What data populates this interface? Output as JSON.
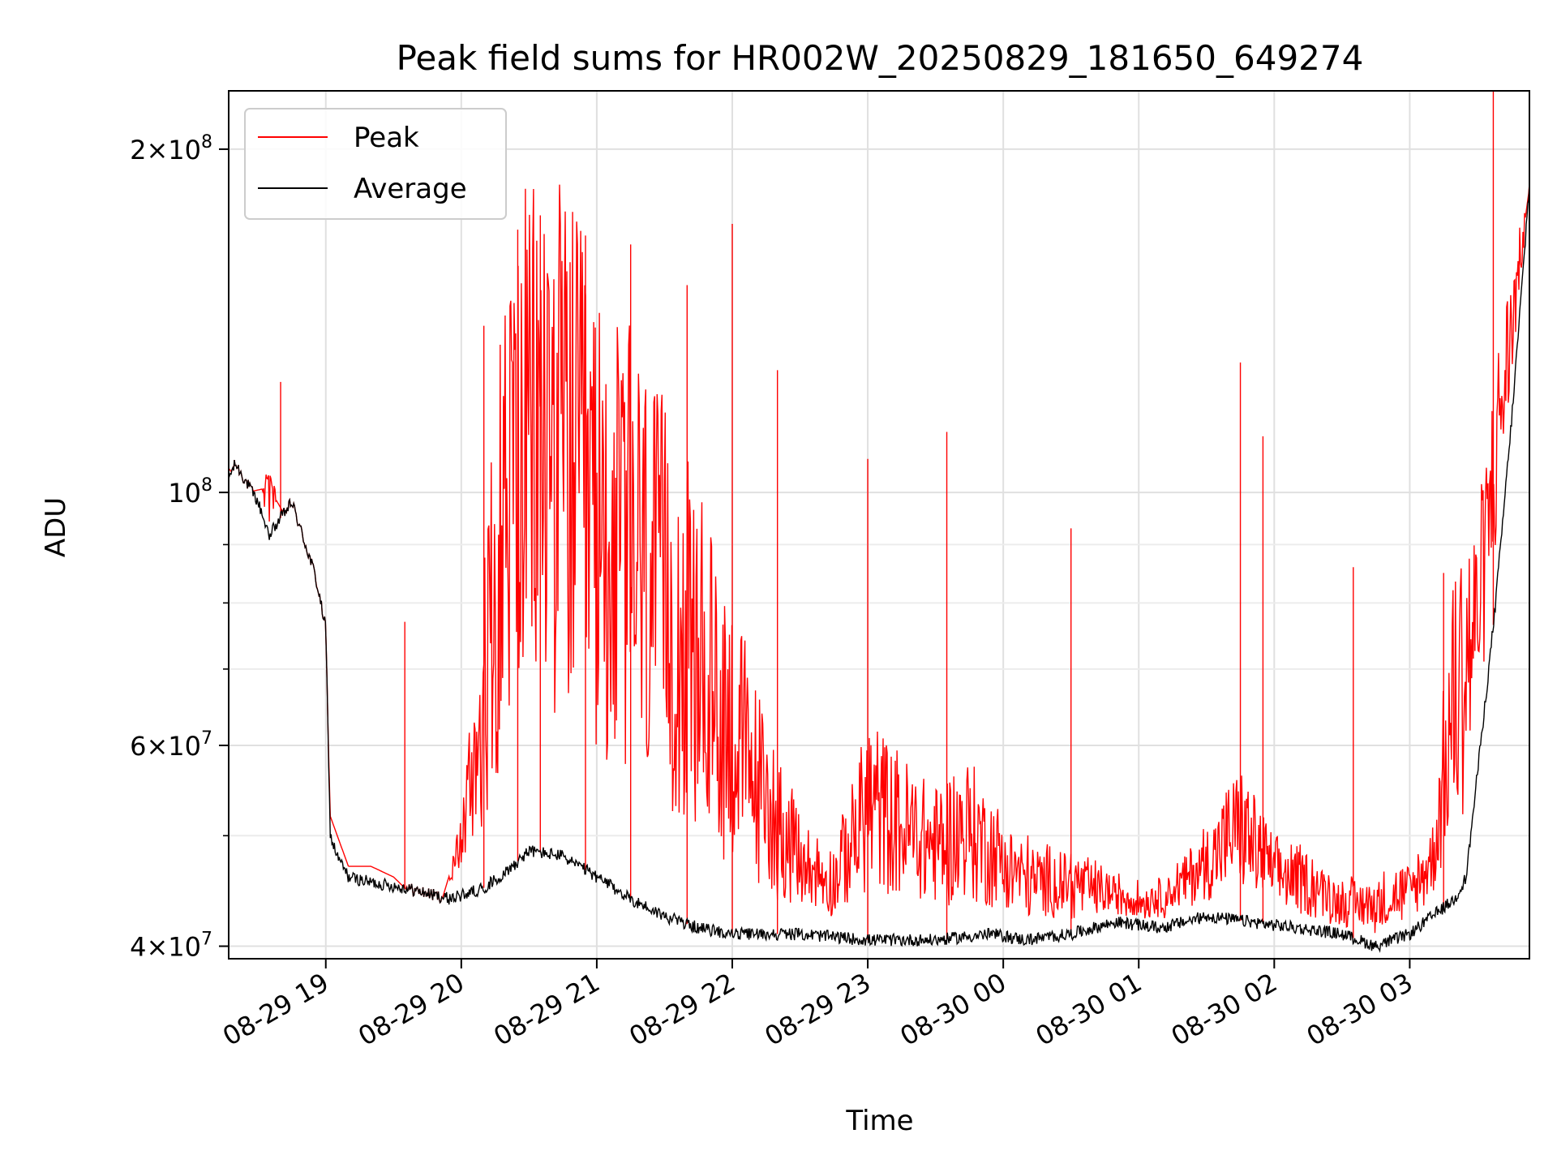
{
  "chart_data": {
    "type": "line",
    "title": "Peak field sums for HR002W_20250829_181650_649274",
    "xlabel": "Time",
    "ylabel": "ADU",
    "yscale": "log",
    "ylim": [
      39000000,
      225000000
    ],
    "xlim": [
      "2025-08-29 18:17",
      "2025-08-30 03:53"
    ],
    "grid": true,
    "legend": "upper-left",
    "x_ticks": [
      "08-29 19",
      "08-29 20",
      "08-29 21",
      "08-29 22",
      "08-29 23",
      "08-30 00",
      "08-30 01",
      "08-30 02",
      "08-30 03"
    ],
    "x_tick_times": [
      "2025-08-29 19:00",
      "2025-08-29 20:00",
      "2025-08-29 21:00",
      "2025-08-29 22:00",
      "2025-08-29 23:00",
      "2025-08-30 00:00",
      "2025-08-30 01:00",
      "2025-08-30 02:00",
      "2025-08-30 03:00"
    ],
    "y_ticks": [
      {
        "value": 40000000,
        "mant": "4",
        "exp": "7"
      },
      {
        "value": 60000000,
        "mant": "6",
        "exp": "7"
      },
      {
        "value": 100000000,
        "mant": "",
        "exp": "8"
      },
      {
        "value": 200000000,
        "mant": "2",
        "exp": "8"
      }
    ],
    "y_minor_ticks": [
      50000000,
      70000000,
      80000000,
      90000000
    ],
    "series": [
      {
        "name": "Peak",
        "color": "#ff0000",
        "x": [
          "2025-08-29 18:17",
          "2025-08-29 18:25",
          "2025-08-29 18:35",
          "2025-08-29 18:45",
          "2025-08-29 18:55",
          "2025-08-29 19:00",
          "2025-08-29 19:02",
          "2025-08-29 19:10",
          "2025-08-29 19:20",
          "2025-08-29 19:30",
          "2025-08-29 19:40",
          "2025-08-29 19:50",
          "2025-08-29 20:00",
          "2025-08-29 20:10",
          "2025-08-29 20:20",
          "2025-08-29 20:30",
          "2025-08-29 20:40",
          "2025-08-29 20:50",
          "2025-08-29 21:00",
          "2025-08-29 21:15",
          "2025-08-29 21:30",
          "2025-08-29 21:45",
          "2025-08-29 22:00",
          "2025-08-29 22:15",
          "2025-08-29 22:30",
          "2025-08-29 22:45",
          "2025-08-29 23:00",
          "2025-08-29 23:15",
          "2025-08-29 23:30",
          "2025-08-29 23:45",
          "2025-08-30 00:00",
          "2025-08-30 00:15",
          "2025-08-30 00:30",
          "2025-08-30 00:45",
          "2025-08-30 01:00",
          "2025-08-30 01:15",
          "2025-08-30 01:30",
          "2025-08-30 01:45",
          "2025-08-30 02:00",
          "2025-08-30 02:15",
          "2025-08-30 02:30",
          "2025-08-30 02:45",
          "2025-08-30 03:00",
          "2025-08-30 03:10",
          "2025-08-30 03:20",
          "2025-08-30 03:30",
          "2025-08-30 03:40",
          "2025-08-30 03:53"
        ],
        "y": [
          105000000,
          100000000,
          101000000,
          93000000,
          85000000,
          73000000,
          52000000,
          47000000,
          47000000,
          46000000,
          44000000,
          43000000,
          50000000,
          70000000,
          110000000,
          120000000,
          125000000,
          115000000,
          100000000,
          95000000,
          85000000,
          75000000,
          65000000,
          55000000,
          48000000,
          46000000,
          55000000,
          52000000,
          50000000,
          52000000,
          48000000,
          46000000,
          46000000,
          45000000,
          44000000,
          45000000,
          48000000,
          52000000,
          47000000,
          46000000,
          44000000,
          44000000,
          45000000,
          48000000,
          70000000,
          80000000,
          120000000,
          185000000
        ],
        "spikes": [
          {
            "x": "2025-08-29 18:40",
            "y": 125000000
          },
          {
            "x": "2025-08-29 19:35",
            "y": 77000000
          },
          {
            "x": "2025-08-29 20:10",
            "y": 140000000
          },
          {
            "x": "2025-08-29 20:25",
            "y": 170000000
          },
          {
            "x": "2025-08-29 20:35",
            "y": 175000000
          },
          {
            "x": "2025-08-29 20:55",
            "y": 168000000
          },
          {
            "x": "2025-08-29 21:15",
            "y": 165000000
          },
          {
            "x": "2025-08-29 21:40",
            "y": 152000000
          },
          {
            "x": "2025-08-29 22:00",
            "y": 172000000
          },
          {
            "x": "2025-08-29 22:20",
            "y": 128000000
          },
          {
            "x": "2025-08-29 23:00",
            "y": 107000000
          },
          {
            "x": "2025-08-29 23:35",
            "y": 113000000
          },
          {
            "x": "2025-08-30 00:30",
            "y": 93000000
          },
          {
            "x": "2025-08-30 01:45",
            "y": 130000000
          },
          {
            "x": "2025-08-30 01:55",
            "y": 112000000
          },
          {
            "x": "2025-08-30 02:35",
            "y": 86000000
          },
          {
            "x": "2025-08-30 03:15",
            "y": 85000000
          },
          {
            "x": "2025-08-30 03:37",
            "y": 225000000
          }
        ]
      },
      {
        "name": "Average",
        "color": "#000000",
        "x": [
          "2025-08-29 18:17",
          "2025-08-29 18:20",
          "2025-08-29 18:30",
          "2025-08-29 18:35",
          "2025-08-29 18:45",
          "2025-08-29 18:55",
          "2025-08-29 19:00",
          "2025-08-29 19:02",
          "2025-08-29 19:05",
          "2025-08-29 19:10",
          "2025-08-29 19:20",
          "2025-08-29 19:35",
          "2025-08-29 19:55",
          "2025-08-29 20:10",
          "2025-08-29 20:20",
          "2025-08-29 20:30",
          "2025-08-29 20:45",
          "2025-08-29 21:00",
          "2025-08-29 21:15",
          "2025-08-29 21:30",
          "2025-08-29 21:45",
          "2025-08-29 22:00",
          "2025-08-29 22:30",
          "2025-08-29 23:00",
          "2025-08-29 23:30",
          "2025-08-29 23:55",
          "2025-08-30 00:10",
          "2025-08-30 00:30",
          "2025-08-30 00:50",
          "2025-08-30 01:10",
          "2025-08-30 01:30",
          "2025-08-30 01:50",
          "2025-08-30 02:10",
          "2025-08-30 02:30",
          "2025-08-30 02:45",
          "2025-08-30 03:00",
          "2025-08-30 03:10",
          "2025-08-30 03:20",
          "2025-08-30 03:25",
          "2025-08-30 03:35",
          "2025-08-30 03:38",
          "2025-08-30 03:45",
          "2025-08-30 03:53"
        ],
        "y": [
          103000000,
          106000000,
          98000000,
          92000000,
          98000000,
          85000000,
          76000000,
          50000000,
          48000000,
          46000000,
          45500000,
          45000000,
          44000000,
          45000000,
          46500000,
          48500000,
          48000000,
          46000000,
          44000000,
          42500000,
          41500000,
          41000000,
          41000000,
          40500000,
          40500000,
          41000000,
          40500000,
          41000000,
          42000000,
          41500000,
          42500000,
          42000000,
          41500000,
          41000000,
          40000000,
          41000000,
          42500000,
          44000000,
          46000000,
          70000000,
          80000000,
          115000000,
          185000000
        ]
      }
    ]
  }
}
